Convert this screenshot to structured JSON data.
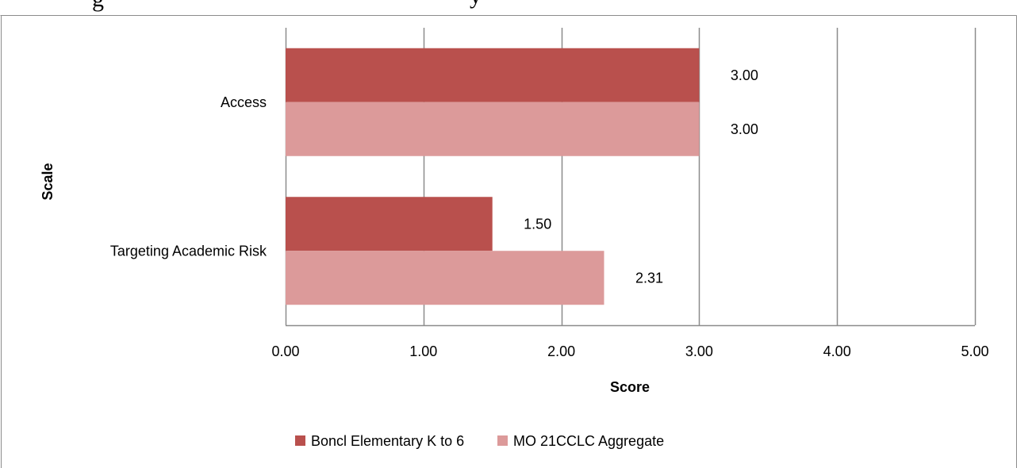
{
  "colors": {
    "series1": "#b9504d",
    "series2": "#dc9a9a",
    "grid": "#8c8c8c",
    "axis": "#8c8c8c",
    "frame": "#8c8c8c"
  },
  "chart_data": {
    "type": "bar",
    "orientation": "horizontal",
    "title": "",
    "xlabel": "Score",
    "ylabel": "Scale",
    "xlim": [
      0,
      5
    ],
    "x_ticks": [
      "0.00",
      "1.00",
      "2.00",
      "3.00",
      "4.00",
      "5.00"
    ],
    "grid": "vertical",
    "legend": "bottom",
    "categories": [
      "Access",
      "Targeting Academic Risk"
    ],
    "series": [
      {
        "name": "Boncl Elementary K to 6",
        "values": [
          3.0,
          1.5
        ],
        "labels": [
          "3.00",
          "1.50"
        ]
      },
      {
        "name": "MO 21CCLC Aggregate",
        "values": [
          3.0,
          2.31
        ],
        "labels": [
          "3.00",
          "2.31"
        ]
      }
    ]
  }
}
